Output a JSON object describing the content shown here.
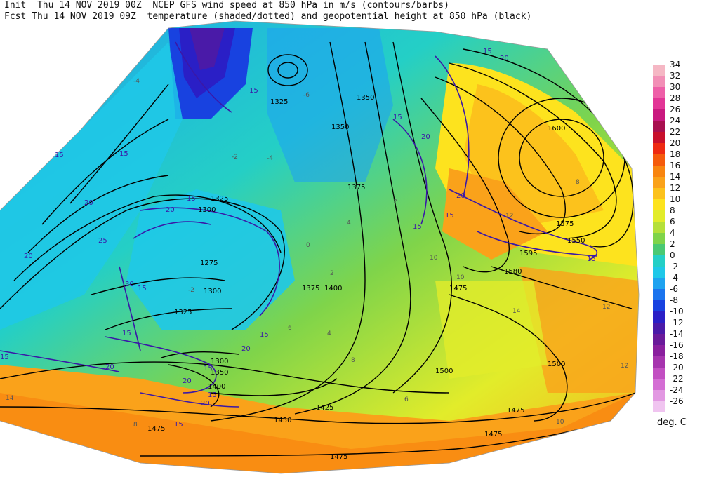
{
  "header": {
    "line1": "Init  Thu 14 NOV 2019 00Z  NCEP GFS wind speed at 850 hPa in m/s (contours/barbs)",
    "line2": "Fcst Thu 14 NOV 2019 09Z  temperature (shaded/dotted) and geopotential height at 850 hPa (black)"
  },
  "colorbar": {
    "units": "deg. C",
    "entries": [
      {
        "label": "34",
        "color": "#f5b7c4"
      },
      {
        "label": "32",
        "color": "#f28fb6"
      },
      {
        "label": "30",
        "color": "#ee5fa8"
      },
      {
        "label": "28",
        "color": "#e23596"
      },
      {
        "label": "26",
        "color": "#c9197f"
      },
      {
        "label": "24",
        "color": "#a8104f"
      },
      {
        "label": "22",
        "color": "#c8102c"
      },
      {
        "label": "20",
        "color": "#ee2a12"
      },
      {
        "label": "18",
        "color": "#f55b0c"
      },
      {
        "label": "16",
        "color": "#f88510"
      },
      {
        "label": "14",
        "color": "#faa21a"
      },
      {
        "label": "12",
        "color": "#fcc21c"
      },
      {
        "label": "10",
        "color": "#fde31e"
      },
      {
        "label": "8",
        "color": "#e2ec2a"
      },
      {
        "label": "6",
        "color": "#b5e03a"
      },
      {
        "label": "4",
        "color": "#7fd44a"
      },
      {
        "label": "2",
        "color": "#4ac973"
      },
      {
        "label": "0",
        "color": "#24cfc6"
      },
      {
        "label": "-2",
        "color": "#1fc8e8"
      },
      {
        "label": "-4",
        "color": "#1ea3f0"
      },
      {
        "label": "-6",
        "color": "#1b74ee"
      },
      {
        "label": "-8",
        "color": "#1842e0"
      },
      {
        "label": "-10",
        "color": "#2a1fc6"
      },
      {
        "label": "-12",
        "color": "#4a1aa8"
      },
      {
        "label": "-14",
        "color": "#6a1a9a"
      },
      {
        "label": "-16",
        "color": "#8a1f9e"
      },
      {
        "label": "-18",
        "color": "#a634ae"
      },
      {
        "label": "-20",
        "color": "#c24fc2"
      },
      {
        "label": "-22",
        "color": "#d46ed4"
      },
      {
        "label": "-24",
        "color": "#e298e2"
      },
      {
        "label": "-26",
        "color": "#f0c4f0"
      }
    ]
  },
  "map": {
    "height_labels": [
      "1325",
      "1350",
      "1350",
      "1375",
      "1325",
      "1300",
      "1275",
      "1300",
      "1325",
      "1375",
      "1400",
      "1300",
      "1350",
      "1400",
      "1425",
      "1450",
      "1475",
      "1475",
      "1475",
      "1500",
      "1475",
      "1500",
      "1600",
      "1575",
      "1550",
      "1595",
      "1580",
      "1475"
    ],
    "wind_labels": [
      "15",
      "15",
      "20",
      "25",
      "30",
      "15",
      "20",
      "20",
      "15",
      "15",
      "15",
      "20",
      "15",
      "15",
      "20",
      "15",
      "20",
      "15",
      "15",
      "20",
      "15",
      "15",
      "20",
      "15",
      "20",
      "15",
      "20",
      "15"
    ],
    "temp_labels": [
      "-4",
      "-6",
      "-4",
      "-2",
      "0",
      "2",
      "4",
      "6",
      "8",
      "10",
      "12",
      "14",
      "12",
      "10",
      "8",
      "6",
      "4",
      "2",
      "-2",
      "14",
      "12",
      "10",
      "8"
    ]
  }
}
